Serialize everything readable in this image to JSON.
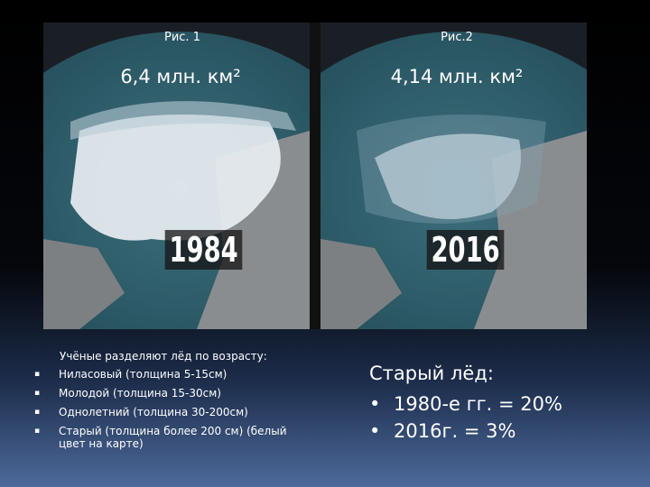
{
  "figures": [
    {
      "caption": "Рис. 1",
      "area": "6,4 млн. км²",
      "year": "1984"
    },
    {
      "caption": "Рис.2",
      "area": "4,14 млн. км²",
      "year": "2016"
    }
  ],
  "left": {
    "heading": "Учёные  разделяют лёд по возрасту:",
    "items": [
      "Ниласовый (толщина 5-15см)",
      "Молодой (толщина 15-30см)",
      "Однолетний (толщина 30-200см)",
      "Старый (толщина более 200 см) (белый цвет на карте)"
    ]
  },
  "right": {
    "heading": "Старый лёд:",
    "items": [
      "1980-е гг. = 20%",
      "2016г. = 3%"
    ]
  }
}
